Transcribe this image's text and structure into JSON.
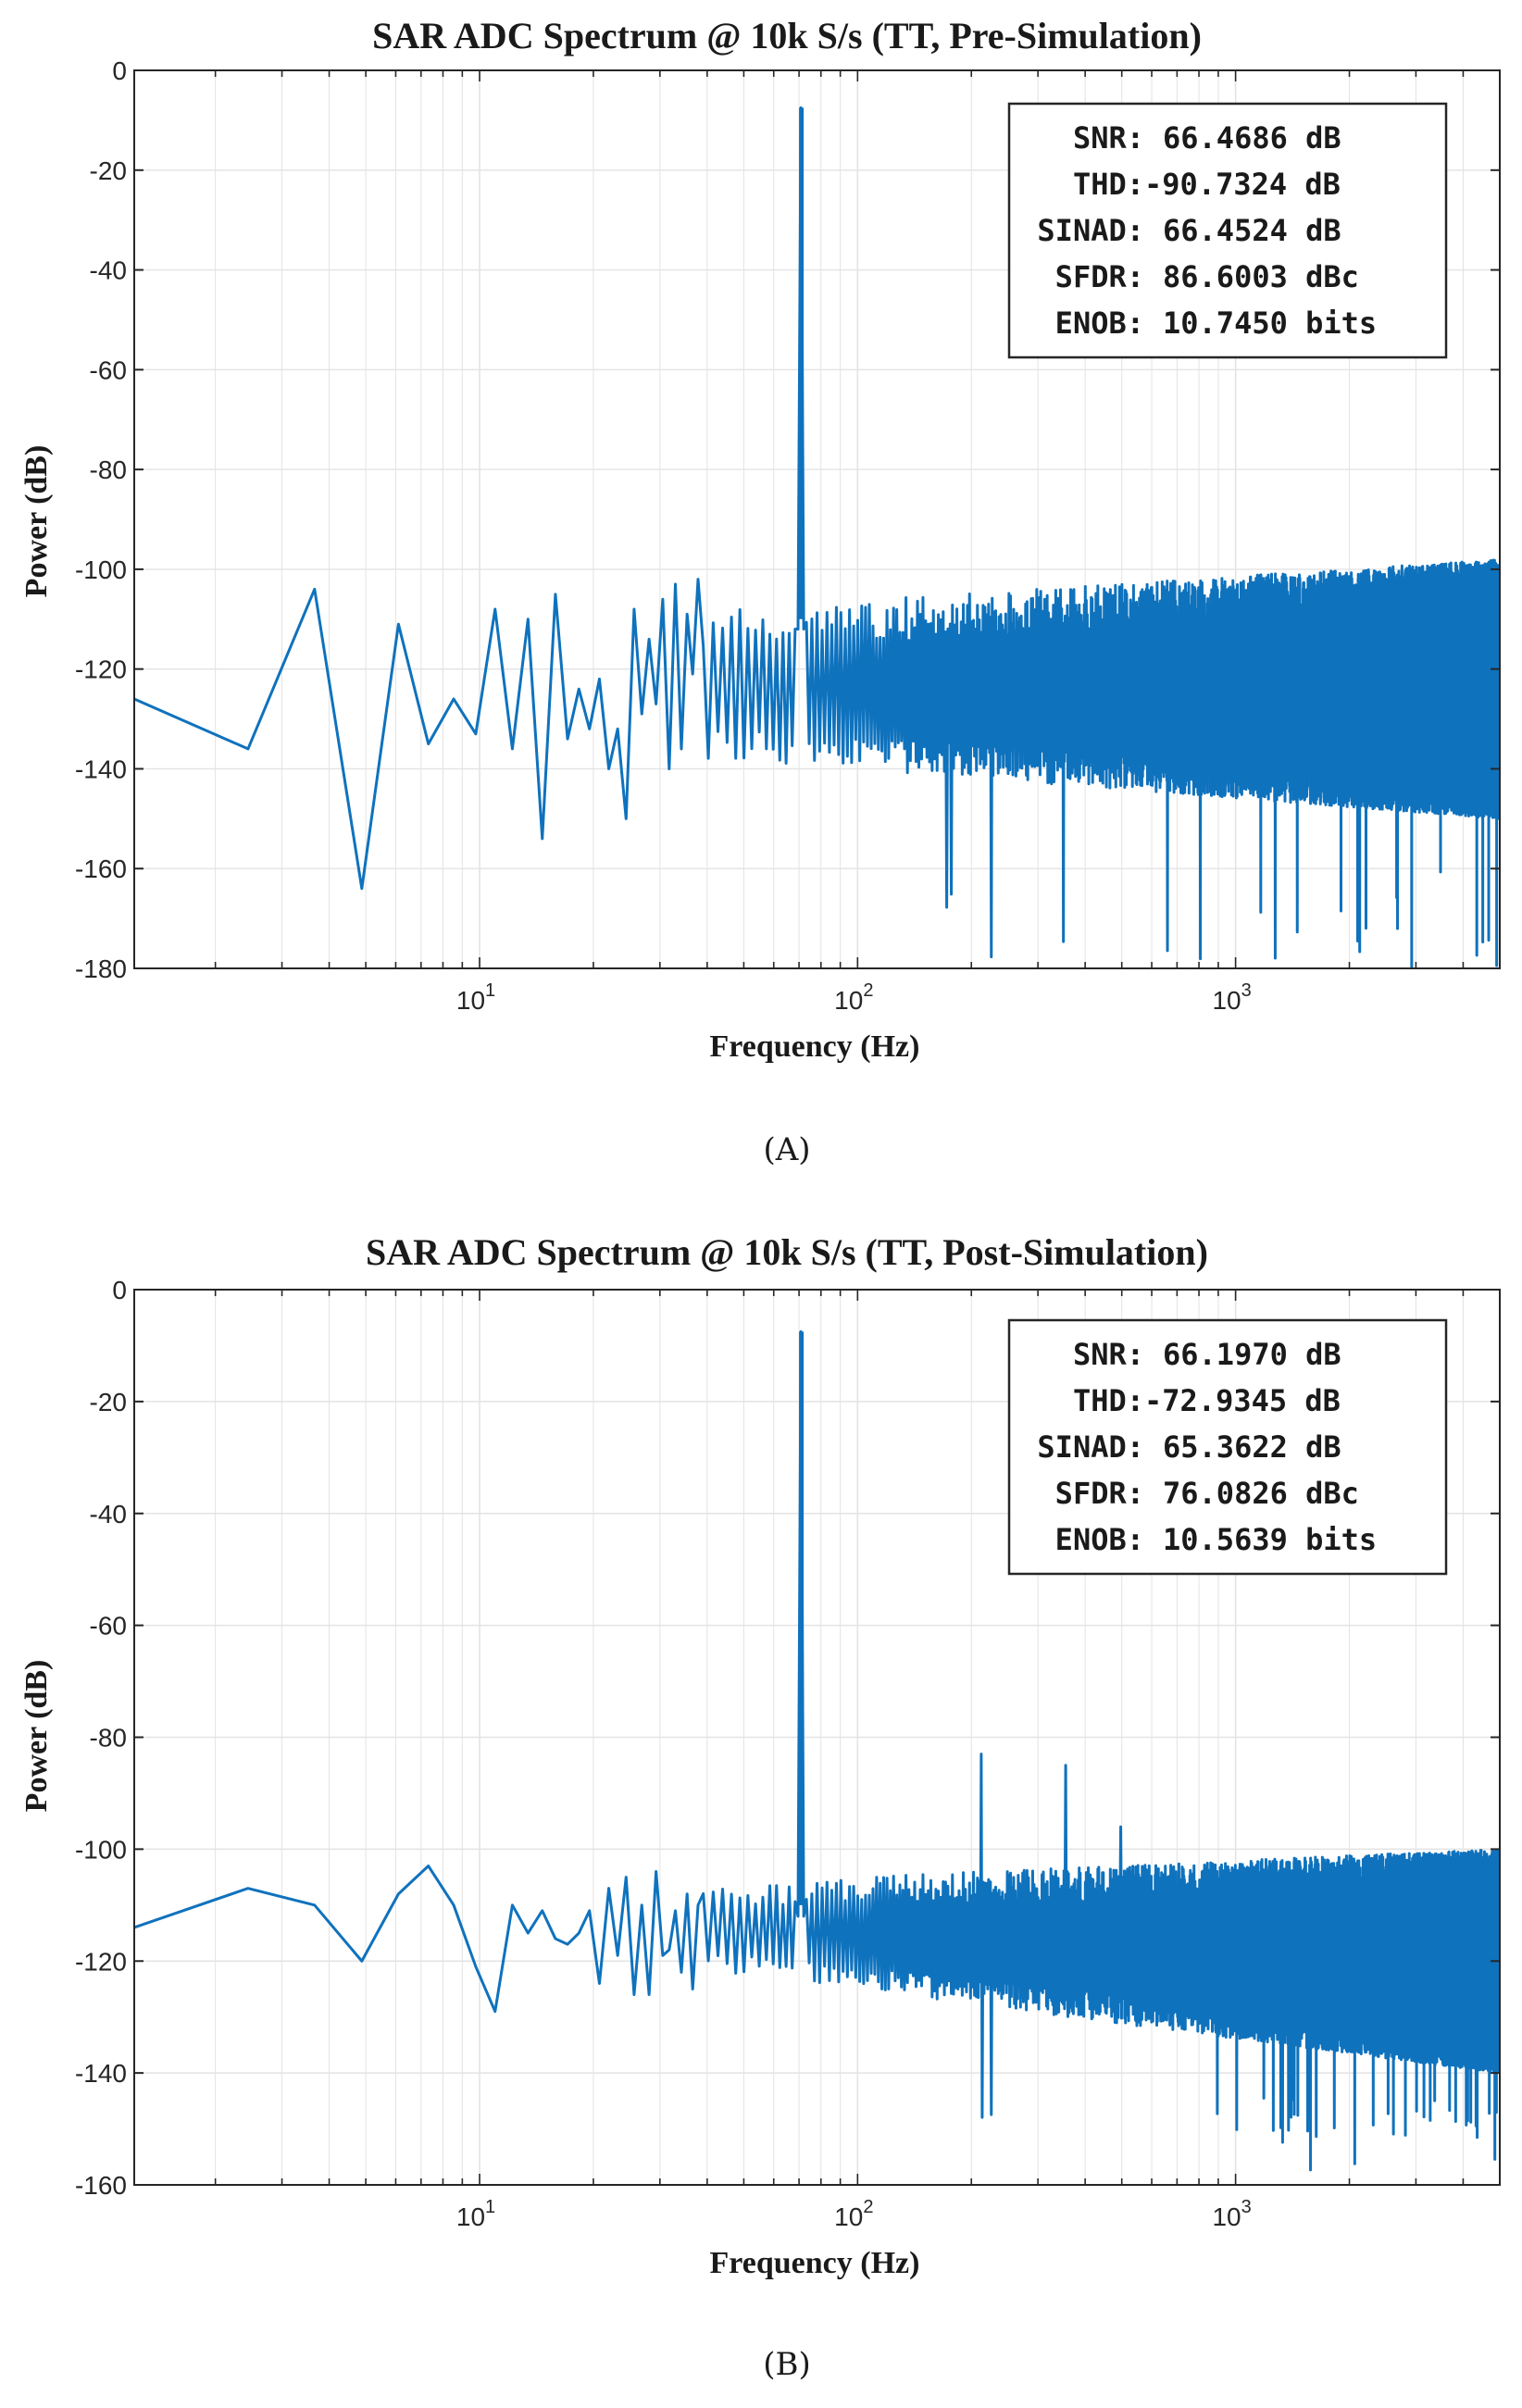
{
  "figure": {
    "panels": [
      {
        "caption": "(A)",
        "stats": [
          {
            "label": "SNR:",
            "value": "66.4686 dB"
          },
          {
            "label": "THD:",
            "value": "-90.7324 dB"
          },
          {
            "label": "SINAD:",
            "value": "66.4524 dB"
          },
          {
            "label": "SFDR:",
            "value": "86.6003 dBc"
          },
          {
            "label": "ENOB:",
            "value": "10.7450 bits"
          }
        ]
      },
      {
        "caption": "(B)",
        "stats": [
          {
            "label": "SNR:",
            "value": "66.1970 dB"
          },
          {
            "label": "THD:",
            "value": "-72.9345 dB"
          },
          {
            "label": "SINAD:",
            "value": "65.3622 dB"
          },
          {
            "label": "SFDR:",
            "value": "76.0826 dBc"
          },
          {
            "label": "ENOB:",
            "value": "10.5639 bits"
          }
        ]
      }
    ]
  },
  "colors": {
    "line": "#0f72bd",
    "grid": "#e3e3e3",
    "axis": "#262626",
    "text": "#1a1a1a"
  },
  "chart_data": [
    {
      "type": "line",
      "title": "SAR ADC Spectrum @ 10k S/s (TT, Pre-Simulation)",
      "xlabel": "Frequency (Hz)",
      "ylabel": "Power (dB)",
      "xscale": "log",
      "xlim": [
        1.22,
        5000
      ],
      "ylim": [
        -180,
        0
      ],
      "grid": true,
      "legend": "none",
      "x_ticks": [
        {
          "base": "10",
          "exp": "1",
          "value": 10
        },
        {
          "base": "10",
          "exp": "2",
          "value": 100
        },
        {
          "base": "10",
          "exp": "3",
          "value": 1000
        }
      ],
      "y_ticks": [
        "0",
        "-20",
        "-40",
        "-60",
        "-80",
        "-100",
        "-120",
        "-140",
        "-160",
        "-180"
      ],
      "y_tick_values": [
        0,
        -20,
        -40,
        -60,
        -80,
        -100,
        -120,
        -140,
        -160,
        -180
      ],
      "tone": {
        "freq": 71,
        "power": -7.5
      },
      "low_freq_points": [
        [
          1.22,
          -126
        ],
        [
          2.44,
          -136
        ],
        [
          3.66,
          -104
        ],
        [
          4.88,
          -164
        ],
        [
          6.1,
          -111
        ],
        [
          7.32,
          -135
        ],
        [
          8.54,
          -126
        ],
        [
          9.77,
          -133
        ],
        [
          10.99,
          -108
        ],
        [
          12.21,
          -136
        ],
        [
          13.43,
          -110
        ],
        [
          14.65,
          -154
        ],
        [
          15.87,
          -105
        ],
        [
          17.09,
          -134
        ],
        [
          18.31,
          -124
        ],
        [
          19.53,
          -132
        ],
        [
          20.75,
          -122
        ],
        [
          21.97,
          -140
        ],
        [
          23.19,
          -132
        ],
        [
          24.41,
          -150
        ],
        [
          25.63,
          -108
        ],
        [
          26.86,
          -129
        ],
        [
          28.08,
          -114
        ],
        [
          29.3,
          -127
        ],
        [
          30.52,
          -106
        ],
        [
          31.74,
          -140
        ],
        [
          32.96,
          -103
        ],
        [
          34.18,
          -136
        ],
        [
          35.4,
          -109
        ],
        [
          36.62,
          -121
        ],
        [
          37.84,
          -102
        ]
      ],
      "noise_floor": {
        "top_low": -108,
        "top_high": -98,
        "bottom_low": -138,
        "bottom_high": -150,
        "min_spikes": [
          -173,
          -166,
          -180,
          -180,
          -178,
          -180
        ]
      },
      "spurs": []
    },
    {
      "type": "line",
      "title": "SAR ADC Spectrum @ 10k S/s (TT, Post-Simulation)",
      "xlabel": "Frequency (Hz)",
      "ylabel": "Power (dB)",
      "xscale": "log",
      "xlim": [
        1.22,
        5000
      ],
      "ylim": [
        -160,
        0
      ],
      "grid": true,
      "legend": "none",
      "x_ticks": [
        {
          "base": "10",
          "exp": "1",
          "value": 10
        },
        {
          "base": "10",
          "exp": "2",
          "value": 100
        },
        {
          "base": "10",
          "exp": "3",
          "value": 1000
        }
      ],
      "y_ticks": [
        "0",
        "-20",
        "-40",
        "-60",
        "-80",
        "-100",
        "-120",
        "-140",
        "-160"
      ],
      "y_tick_values": [
        0,
        -20,
        -40,
        -60,
        -80,
        -100,
        -120,
        -140,
        -160
      ],
      "tone": {
        "freq": 71,
        "power": -7.5
      },
      "low_freq_points": [
        [
          1.22,
          -114
        ],
        [
          2.44,
          -107
        ],
        [
          3.66,
          -110
        ],
        [
          4.88,
          -120
        ],
        [
          6.1,
          -108
        ],
        [
          7.32,
          -103
        ],
        [
          8.54,
          -110
        ],
        [
          9.77,
          -121
        ],
        [
          10.99,
          -129
        ],
        [
          12.21,
          -110
        ],
        [
          13.43,
          -115
        ],
        [
          14.65,
          -111
        ],
        [
          15.87,
          -116
        ],
        [
          17.09,
          -117
        ],
        [
          18.31,
          -115
        ],
        [
          19.53,
          -111
        ],
        [
          20.75,
          -124
        ],
        [
          21.97,
          -107
        ],
        [
          23.19,
          -119
        ],
        [
          24.41,
          -105
        ],
        [
          25.63,
          -126
        ],
        [
          26.86,
          -110
        ],
        [
          28.08,
          -126
        ],
        [
          29.3,
          -104
        ],
        [
          30.52,
          -119
        ],
        [
          31.74,
          -118
        ],
        [
          32.96,
          -111
        ],
        [
          34.18,
          -122
        ],
        [
          35.4,
          -108
        ],
        [
          36.62,
          -125
        ],
        [
          37.84,
          -110
        ]
      ],
      "noise_floor": {
        "top_low": -106,
        "top_high": -100,
        "bottom_low": -122,
        "bottom_high": -140,
        "min_spikes": [
          -150,
          -160,
          -153,
          -152,
          -150
        ]
      },
      "spurs": [
        {
          "freq": 213,
          "power": -83
        },
        {
          "freq": 355,
          "power": -85
        },
        {
          "freq": 497,
          "power": -96
        }
      ]
    }
  ]
}
